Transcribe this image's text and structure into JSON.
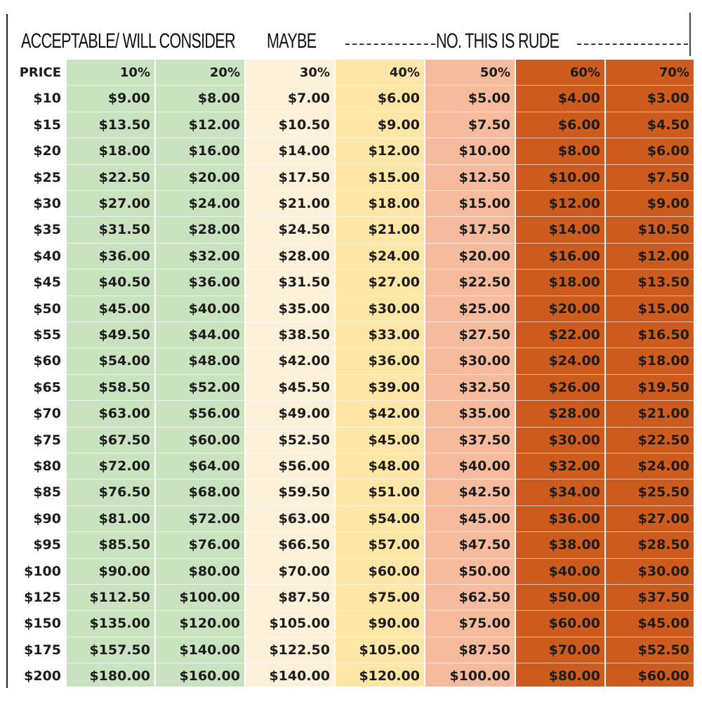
{
  "header": {
    "acceptable": "ACCEPTABLE/ WILL CONSIDER",
    "maybe": "MAYBE",
    "rude": "NO. THIS IS RUDE"
  },
  "table": {
    "columns": [
      "PRICE",
      "10%",
      "20%",
      "30%",
      "40%",
      "50%",
      "60%",
      "70%"
    ],
    "rows": [
      [
        "$10",
        "$9.00",
        "$8.00",
        "$7.00",
        "$6.00",
        "$5.00",
        "$4.00",
        "$3.00"
      ],
      [
        "$15",
        "$13.50",
        "$12.00",
        "$10.50",
        "$9.00",
        "$7.50",
        "$6.00",
        "$4.50"
      ],
      [
        "$20",
        "$18.00",
        "$16.00",
        "$14.00",
        "$12.00",
        "$10.00",
        "$8.00",
        "$6.00"
      ],
      [
        "$25",
        "$22.50",
        "$20.00",
        "$17.50",
        "$15.00",
        "$12.50",
        "$10.00",
        "$7.50"
      ],
      [
        "$30",
        "$27.00",
        "$24.00",
        "$21.00",
        "$18.00",
        "$15.00",
        "$12.00",
        "$9.00"
      ],
      [
        "$35",
        "$31.50",
        "$28.00",
        "$24.50",
        "$21.00",
        "$17.50",
        "$14.00",
        "$10.50"
      ],
      [
        "$40",
        "$36.00",
        "$32.00",
        "$28.00",
        "$24.00",
        "$20.00",
        "$16.00",
        "$12.00"
      ],
      [
        "$45",
        "$40.50",
        "$36.00",
        "$31.50",
        "$27.00",
        "$22.50",
        "$18.00",
        "$13.50"
      ],
      [
        "$50",
        "$45.00",
        "$40.00",
        "$35.00",
        "$30.00",
        "$25.00",
        "$20.00",
        "$15.00"
      ],
      [
        "$55",
        "$49.50",
        "$44.00",
        "$38.50",
        "$33.00",
        "$27.50",
        "$22.00",
        "$16.50"
      ],
      [
        "$60",
        "$54.00",
        "$48.00",
        "$42.00",
        "$36.00",
        "$30.00",
        "$24.00",
        "$18.00"
      ],
      [
        "$65",
        "$58.50",
        "$52.00",
        "$45.50",
        "$39.00",
        "$32.50",
        "$26.00",
        "$19.50"
      ],
      [
        "$70",
        "$63.00",
        "$56.00",
        "$49.00",
        "$42.00",
        "$35.00",
        "$28.00",
        "$21.00"
      ],
      [
        "$75",
        "$67.50",
        "$60.00",
        "$52.50",
        "$45.00",
        "$37.50",
        "$30.00",
        "$22.50"
      ],
      [
        "$80",
        "$72.00",
        "$64.00",
        "$56.00",
        "$48.00",
        "$40.00",
        "$32.00",
        "$24.00"
      ],
      [
        "$85",
        "$76.50",
        "$68.00",
        "$59.50",
        "$51.00",
        "$42.50",
        "$34.00",
        "$25.50"
      ],
      [
        "$90",
        "$81.00",
        "$72.00",
        "$63.00",
        "$54.00",
        "$45.00",
        "$36.00",
        "$27.00"
      ],
      [
        "$95",
        "$85.50",
        "$76.00",
        "$66.50",
        "$57.00",
        "$47.50",
        "$38.00",
        "$28.50"
      ],
      [
        "$100",
        "$90.00",
        "$80.00",
        "$70.00",
        "$60.00",
        "$50.00",
        "$40.00",
        "$30.00"
      ],
      [
        "$125",
        "$112.50",
        "$100.00",
        "$87.50",
        "$75.00",
        "$62.50",
        "$50.00",
        "$37.50"
      ],
      [
        "$150",
        "$135.00",
        "$120.00",
        "$105.00",
        "$90.00",
        "$75.00",
        "$60.00",
        "$45.00"
      ],
      [
        "$175",
        "$157.50",
        "$140.00",
        "$122.50",
        "$105.00",
        "$87.50",
        "$70.00",
        "$52.50"
      ],
      [
        "$200",
        "$180.00",
        "$160.00",
        "$140.00",
        "$120.00",
        "$100.00",
        "$80.00",
        "$60.00"
      ]
    ]
  }
}
